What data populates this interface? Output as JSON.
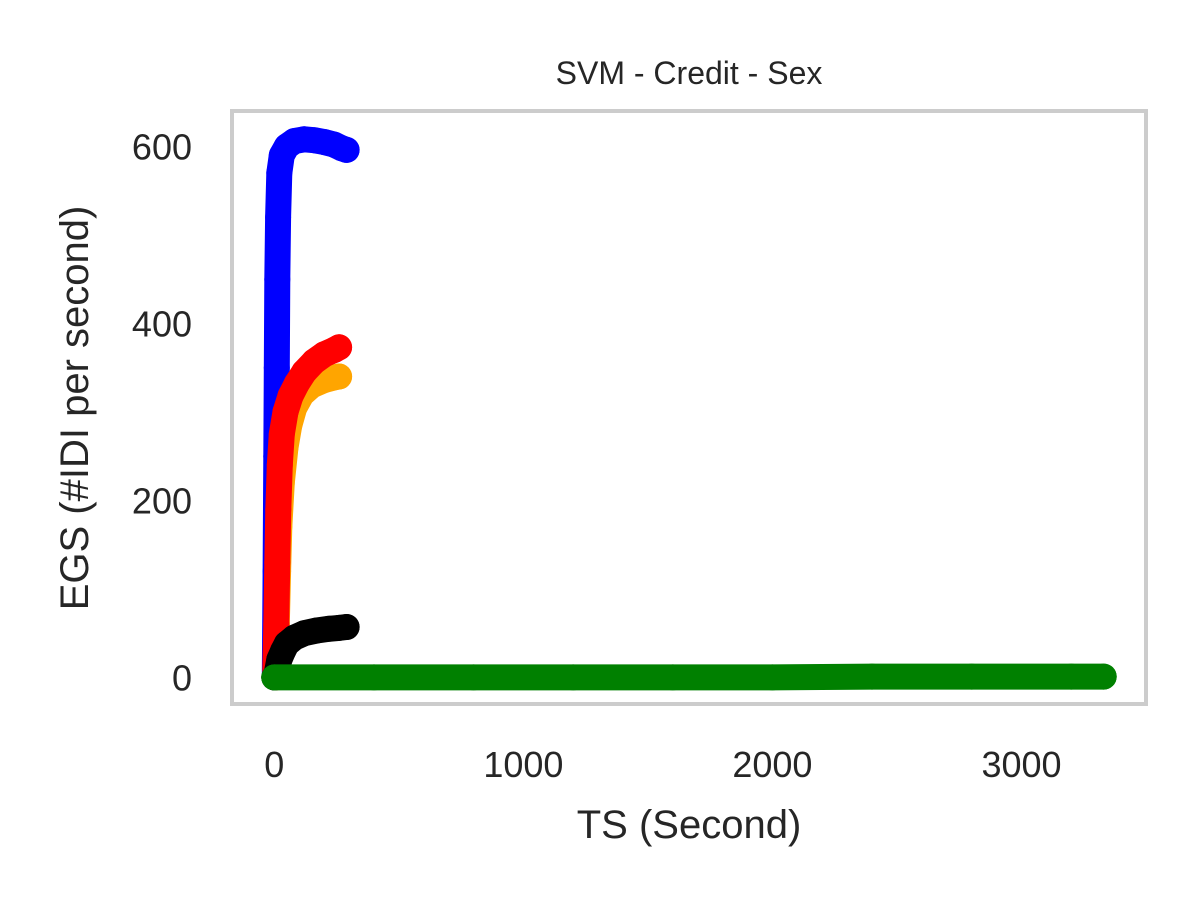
{
  "chart_data": {
    "type": "scatter",
    "title": "SVM - Credit - Sex",
    "xlabel": "TS (Second)",
    "ylabel": "EGS (#IDI  per second)",
    "xlim": [
      -170,
      3500
    ],
    "ylim": [
      -30,
      640
    ],
    "grid": false,
    "xticks": [
      0,
      1000,
      2000,
      3000
    ],
    "yticks": [
      0,
      200,
      400,
      600
    ],
    "series": [
      {
        "color": "#0000ff",
        "points": [
          [
            2,
            0
          ],
          [
            5,
            120
          ],
          [
            8,
            250
          ],
          [
            10,
            350
          ],
          [
            12,
            450
          ],
          [
            15,
            520
          ],
          [
            20,
            570
          ],
          [
            30,
            590
          ],
          [
            50,
            600
          ],
          [
            80,
            606
          ],
          [
            120,
            608
          ],
          [
            160,
            607
          ],
          [
            200,
            605
          ],
          [
            240,
            602
          ],
          [
            270,
            598
          ],
          [
            290,
            596
          ]
        ]
      },
      {
        "color": "#ffa500",
        "points": [
          [
            5,
            0
          ],
          [
            10,
            60
          ],
          [
            15,
            120
          ],
          [
            20,
            170
          ],
          [
            30,
            220
          ],
          [
            45,
            260
          ],
          [
            60,
            285
          ],
          [
            80,
            305
          ],
          [
            110,
            320
          ],
          [
            150,
            330
          ],
          [
            200,
            336
          ],
          [
            240,
            339
          ],
          [
            260,
            340
          ]
        ]
      },
      {
        "color": "#ff0000",
        "points": [
          [
            3,
            0
          ],
          [
            8,
            60
          ],
          [
            12,
            130
          ],
          [
            16,
            190
          ],
          [
            22,
            240
          ],
          [
            30,
            275
          ],
          [
            45,
            300
          ],
          [
            65,
            318
          ],
          [
            90,
            332
          ],
          [
            120,
            345
          ],
          [
            160,
            357
          ],
          [
            200,
            365
          ],
          [
            240,
            370
          ],
          [
            260,
            373
          ]
        ]
      },
      {
        "color": "#000000",
        "points": [
          [
            0,
            0
          ],
          [
            10,
            5
          ],
          [
            20,
            20
          ],
          [
            35,
            30
          ],
          [
            50,
            38
          ],
          [
            80,
            45
          ],
          [
            120,
            50
          ],
          [
            170,
            53
          ],
          [
            220,
            55
          ],
          [
            260,
            56
          ],
          [
            290,
            57
          ]
        ]
      },
      {
        "color": "#008000",
        "points": [
          [
            0,
            0
          ],
          [
            400,
            0
          ],
          [
            800,
            0
          ],
          [
            1200,
            0
          ],
          [
            1600,
            0
          ],
          [
            2000,
            0
          ],
          [
            2400,
            1
          ],
          [
            2800,
            1
          ],
          [
            3200,
            1
          ],
          [
            3330,
            1
          ]
        ]
      }
    ]
  }
}
